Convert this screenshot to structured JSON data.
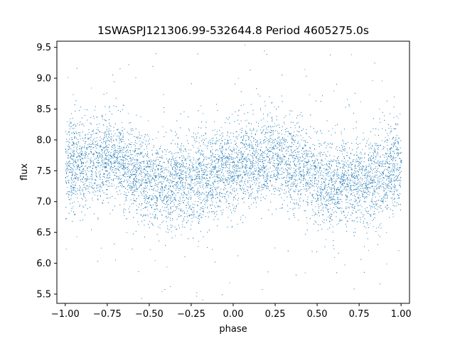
{
  "chart_data": {
    "type": "scatter",
    "title": "1SWASPJ121306.99-532644.8 Period 4605275.0s",
    "xlabel": "phase",
    "ylabel": "flux",
    "xlim": [
      -1.05,
      1.05
    ],
    "ylim": [
      5.35,
      9.6
    ],
    "x_ticks": [
      -1.0,
      -0.75,
      -0.5,
      -0.25,
      0.0,
      0.25,
      0.5,
      0.75,
      1.0
    ],
    "x_tick_labels": [
      "−1.00",
      "−0.75",
      "−0.50",
      "−0.25",
      "0.00",
      "0.25",
      "0.50",
      "0.75",
      "1.00"
    ],
    "y_ticks": [
      5.5,
      6.0,
      6.5,
      7.0,
      7.5,
      8.0,
      8.5,
      9.0,
      9.5
    ],
    "y_tick_labels": [
      "5.5",
      "6.0",
      "6.5",
      "7.0",
      "7.5",
      "8.0",
      "8.5",
      "9.0",
      "9.5"
    ],
    "grid": false,
    "legend": "none",
    "marker_color": "#1f77b4",
    "series": [
      {
        "phase_range": [
          -1.0,
          1.0
        ],
        "mean_curve": {
          "x": [
            -1.0,
            -0.9,
            -0.8,
            -0.75,
            -0.7,
            -0.6,
            -0.55,
            -0.5,
            -0.45,
            -0.4,
            -0.35,
            -0.3,
            -0.25,
            -0.2,
            -0.15,
            -0.1,
            -0.05,
            0.0,
            0.1,
            0.2,
            0.25,
            0.3,
            0.4,
            0.45,
            0.5,
            0.55,
            0.6,
            0.65,
            0.7,
            0.75,
            0.8,
            0.85,
            0.9,
            0.95,
            1.0
          ],
          "y": [
            7.6,
            7.6,
            7.7,
            7.75,
            7.7,
            7.55,
            7.45,
            7.35,
            7.3,
            7.25,
            7.35,
            7.3,
            7.3,
            7.4,
            7.3,
            7.45,
            7.55,
            7.6,
            7.6,
            7.7,
            7.75,
            7.7,
            7.55,
            7.45,
            7.35,
            7.3,
            7.25,
            7.35,
            7.3,
            7.3,
            7.4,
            7.3,
            7.45,
            7.55,
            7.6
          ]
        },
        "spread": 0.35,
        "n_points": 12000
      }
    ]
  }
}
